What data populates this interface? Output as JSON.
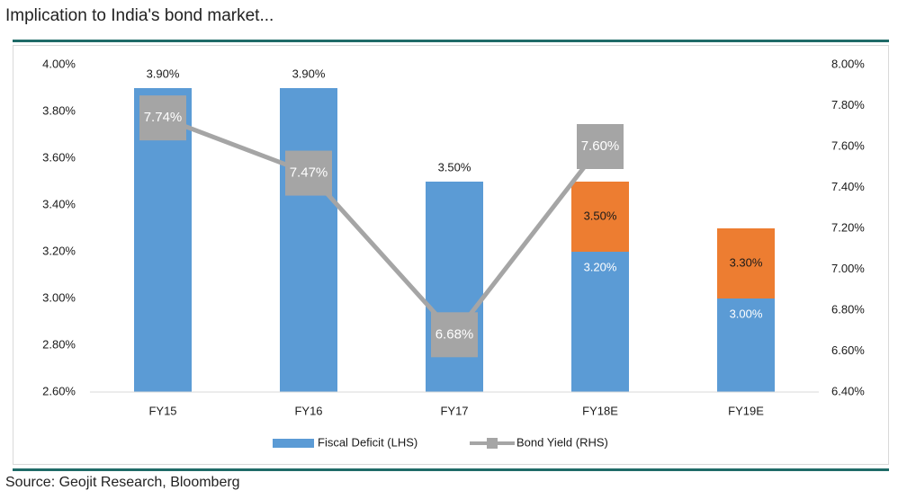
{
  "title": "Implication to India's bond market...",
  "source": "Source: Geojit Research, Bloomberg",
  "colors": {
    "blue": "#5b9bd5",
    "orange": "#ed7d31",
    "gray": "#a5a5a5",
    "rule": "#1f6b68"
  },
  "chart_data": {
    "type": "bar",
    "categories": [
      "FY15",
      "FY16",
      "FY17",
      "FY18E",
      "FY19E"
    ],
    "series": [
      {
        "name": "Fiscal Deficit (LHS)",
        "type": "bar",
        "axis": "left",
        "values": [
          3.9,
          3.9,
          3.5,
          3.2,
          3.0
        ],
        "labels": [
          "3.90%",
          "3.90%",
          "3.50%",
          "3.20%",
          "3.00%"
        ]
      },
      {
        "name": "",
        "type": "bar-stacked",
        "axis": "left",
        "values": [
          null,
          null,
          null,
          3.5,
          3.3
        ],
        "labels": [
          "",
          "",
          "",
          "3.50%",
          "3.30%"
        ]
      },
      {
        "name": "Bond Yield (RHS)",
        "type": "line",
        "axis": "right",
        "values": [
          7.74,
          7.47,
          6.68,
          7.6,
          null
        ],
        "labels": [
          "7.74%",
          "7.47%",
          "6.68%",
          "7.60%",
          ""
        ]
      }
    ],
    "y_left": {
      "ylim": [
        2.6,
        4.0
      ],
      "ticks": [
        "2.60%",
        "2.80%",
        "3.00%",
        "3.20%",
        "3.40%",
        "3.60%",
        "3.80%",
        "4.00%"
      ]
    },
    "y_right": {
      "ylim": [
        6.4,
        8.0
      ],
      "ticks": [
        "6.40%",
        "6.60%",
        "6.80%",
        "7.00%",
        "7.20%",
        "7.40%",
        "7.60%",
        "7.80%",
        "8.00%"
      ]
    },
    "grid": false,
    "legend": "bottom-center"
  }
}
